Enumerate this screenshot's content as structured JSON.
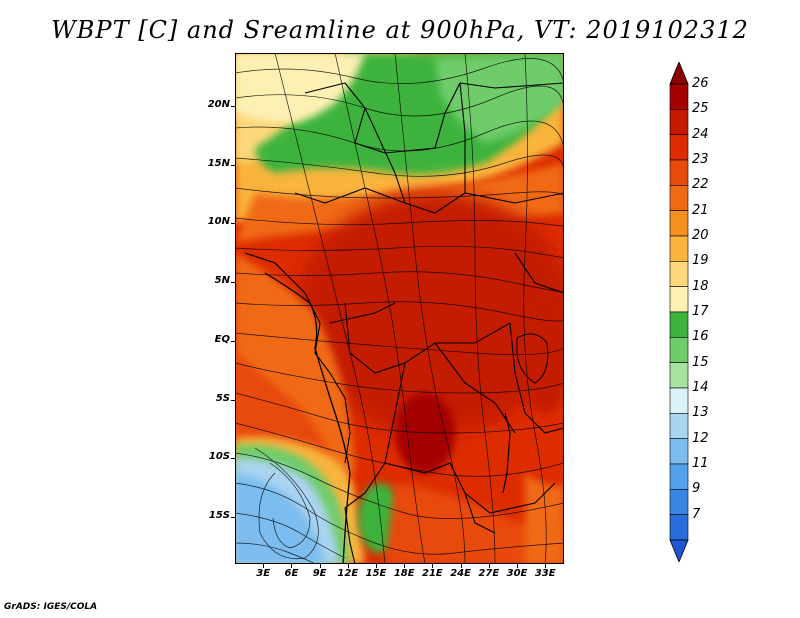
{
  "title": "WBPT [C] and Sreamline at 900hPa, VT: 2019102312",
  "footer": "GrADS: IGES/COLA",
  "map": {
    "lat_labels": [
      "20N",
      "15N",
      "10N",
      "5N",
      "EQ",
      "5S",
      "10S",
      "15S"
    ],
    "lat_values": [
      20,
      15,
      10,
      5,
      0,
      -5,
      -10,
      -15
    ],
    "lon_labels": [
      "3E",
      "6E",
      "9E",
      "12E",
      "15E",
      "18E",
      "21E",
      "24E",
      "27E",
      "30E",
      "33E"
    ],
    "lon_values": [
      3,
      6,
      9,
      12,
      15,
      18,
      21,
      24,
      27,
      30,
      33
    ],
    "lat_range": [
      -19,
      24.5
    ],
    "lon_range": [
      0,
      35
    ]
  },
  "colorbar": {
    "labels": [
      "26",
      "25",
      "24",
      "23",
      "22",
      "21",
      "20",
      "19",
      "18",
      "17",
      "16",
      "15",
      "14",
      "13",
      "12",
      "11",
      "9",
      "7"
    ],
    "colors": [
      "#a50000",
      "#c41a00",
      "#dd2c00",
      "#e84a0a",
      "#f06a14",
      "#f6901e",
      "#f9b43c",
      "#fcd87a",
      "#fdf0b4",
      "#3db33d",
      "#6fcc6a",
      "#a8e2a0",
      "#d9f3f7",
      "#aad4f0",
      "#7cbcee",
      "#55a0ea",
      "#3a86e4",
      "#2a6cdc"
    ],
    "top_arrow_color": "#8c0000",
    "bottom_arrow_color": "#1f55d0"
  }
}
